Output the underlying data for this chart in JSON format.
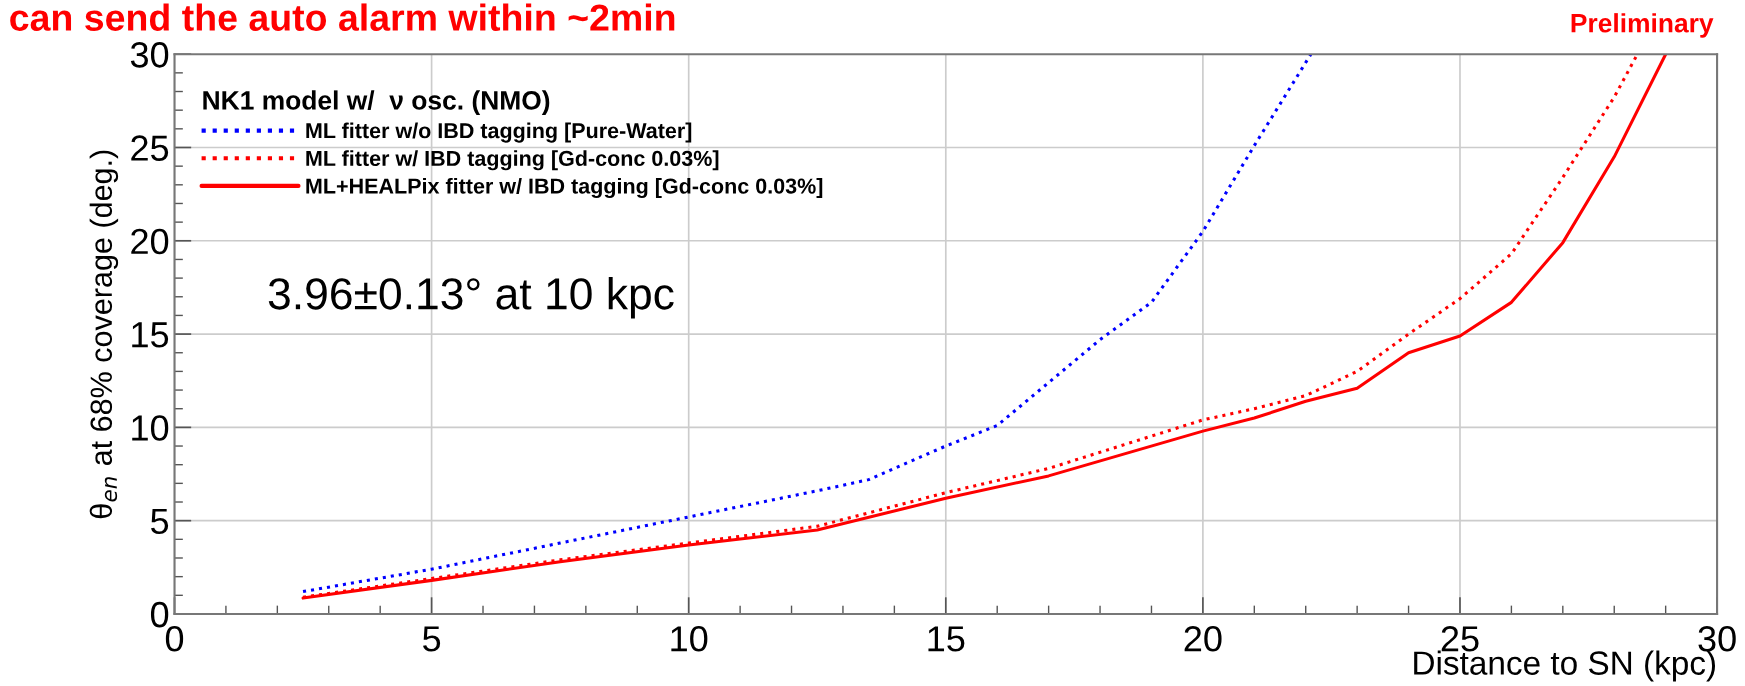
{
  "chart_data": {
    "type": "line",
    "title": "can send the auto alarm within ~2min",
    "xlabel": "Distance to SN (kpc)",
    "ylabel": "θ$_{en}$ at 68% coverage (deg.)",
    "legend_title": "NK1 model w/  ν osc. (NMO)",
    "annotations": [
      "3.96±0.13° at 10 kpc",
      "Preliminary"
    ],
    "xlim": [
      0,
      30
    ],
    "ylim": [
      0,
      30
    ],
    "xticks": [
      0,
      5,
      10,
      15,
      20,
      25,
      30
    ],
    "yticks": [
      0,
      5,
      10,
      15,
      20,
      25,
      30
    ],
    "grid": true,
    "legend": "top left",
    "series": [
      {
        "name": "ML fitter w/o IBD tagging [Pure-Water]",
        "color": "#0000ff",
        "line_style": "dotted",
        "x": [
          2.5,
          5,
          7.5,
          10,
          12.5,
          13.5,
          15,
          16,
          17,
          18,
          19,
          20,
          21,
          22.1
        ],
        "values": [
          1.2,
          2.4,
          3.8,
          5.2,
          6.6,
          7.2,
          9.0,
          10.1,
          12.4,
          14.7,
          16.7,
          20.5,
          25.1,
          30
        ]
      },
      {
        "name": "ML fitter w/ IBD tagging [Gd-conc 0.03%]",
        "color": "#ff0000",
        "line_style": "dotted",
        "x": [
          2.5,
          5,
          7.5,
          10,
          12.5,
          15,
          17,
          20,
          21,
          22,
          23,
          24,
          25,
          26,
          27,
          28,
          28.45
        ],
        "values": [
          0.9,
          1.9,
          2.9,
          3.8,
          4.7,
          6.5,
          7.8,
          10.4,
          11.0,
          11.7,
          13.0,
          15.0,
          16.9,
          19.3,
          23.4,
          27.7,
          30
        ]
      },
      {
        "name": "ML+HEALPix fitter w/ IBD tagging [Gd-conc 0.03%]",
        "color": "#ff0000",
        "line_style": "solid",
        "x": [
          2.5,
          5,
          7.5,
          10,
          12.5,
          15,
          17,
          20,
          21,
          22,
          23,
          24,
          25,
          26,
          27,
          28,
          29.0
        ],
        "values": [
          0.85,
          1.8,
          2.8,
          3.7,
          4.5,
          6.2,
          7.4,
          9.8,
          10.5,
          11.4,
          12.1,
          14.0,
          14.9,
          16.7,
          19.9,
          24.5,
          30
        ]
      }
    ]
  }
}
